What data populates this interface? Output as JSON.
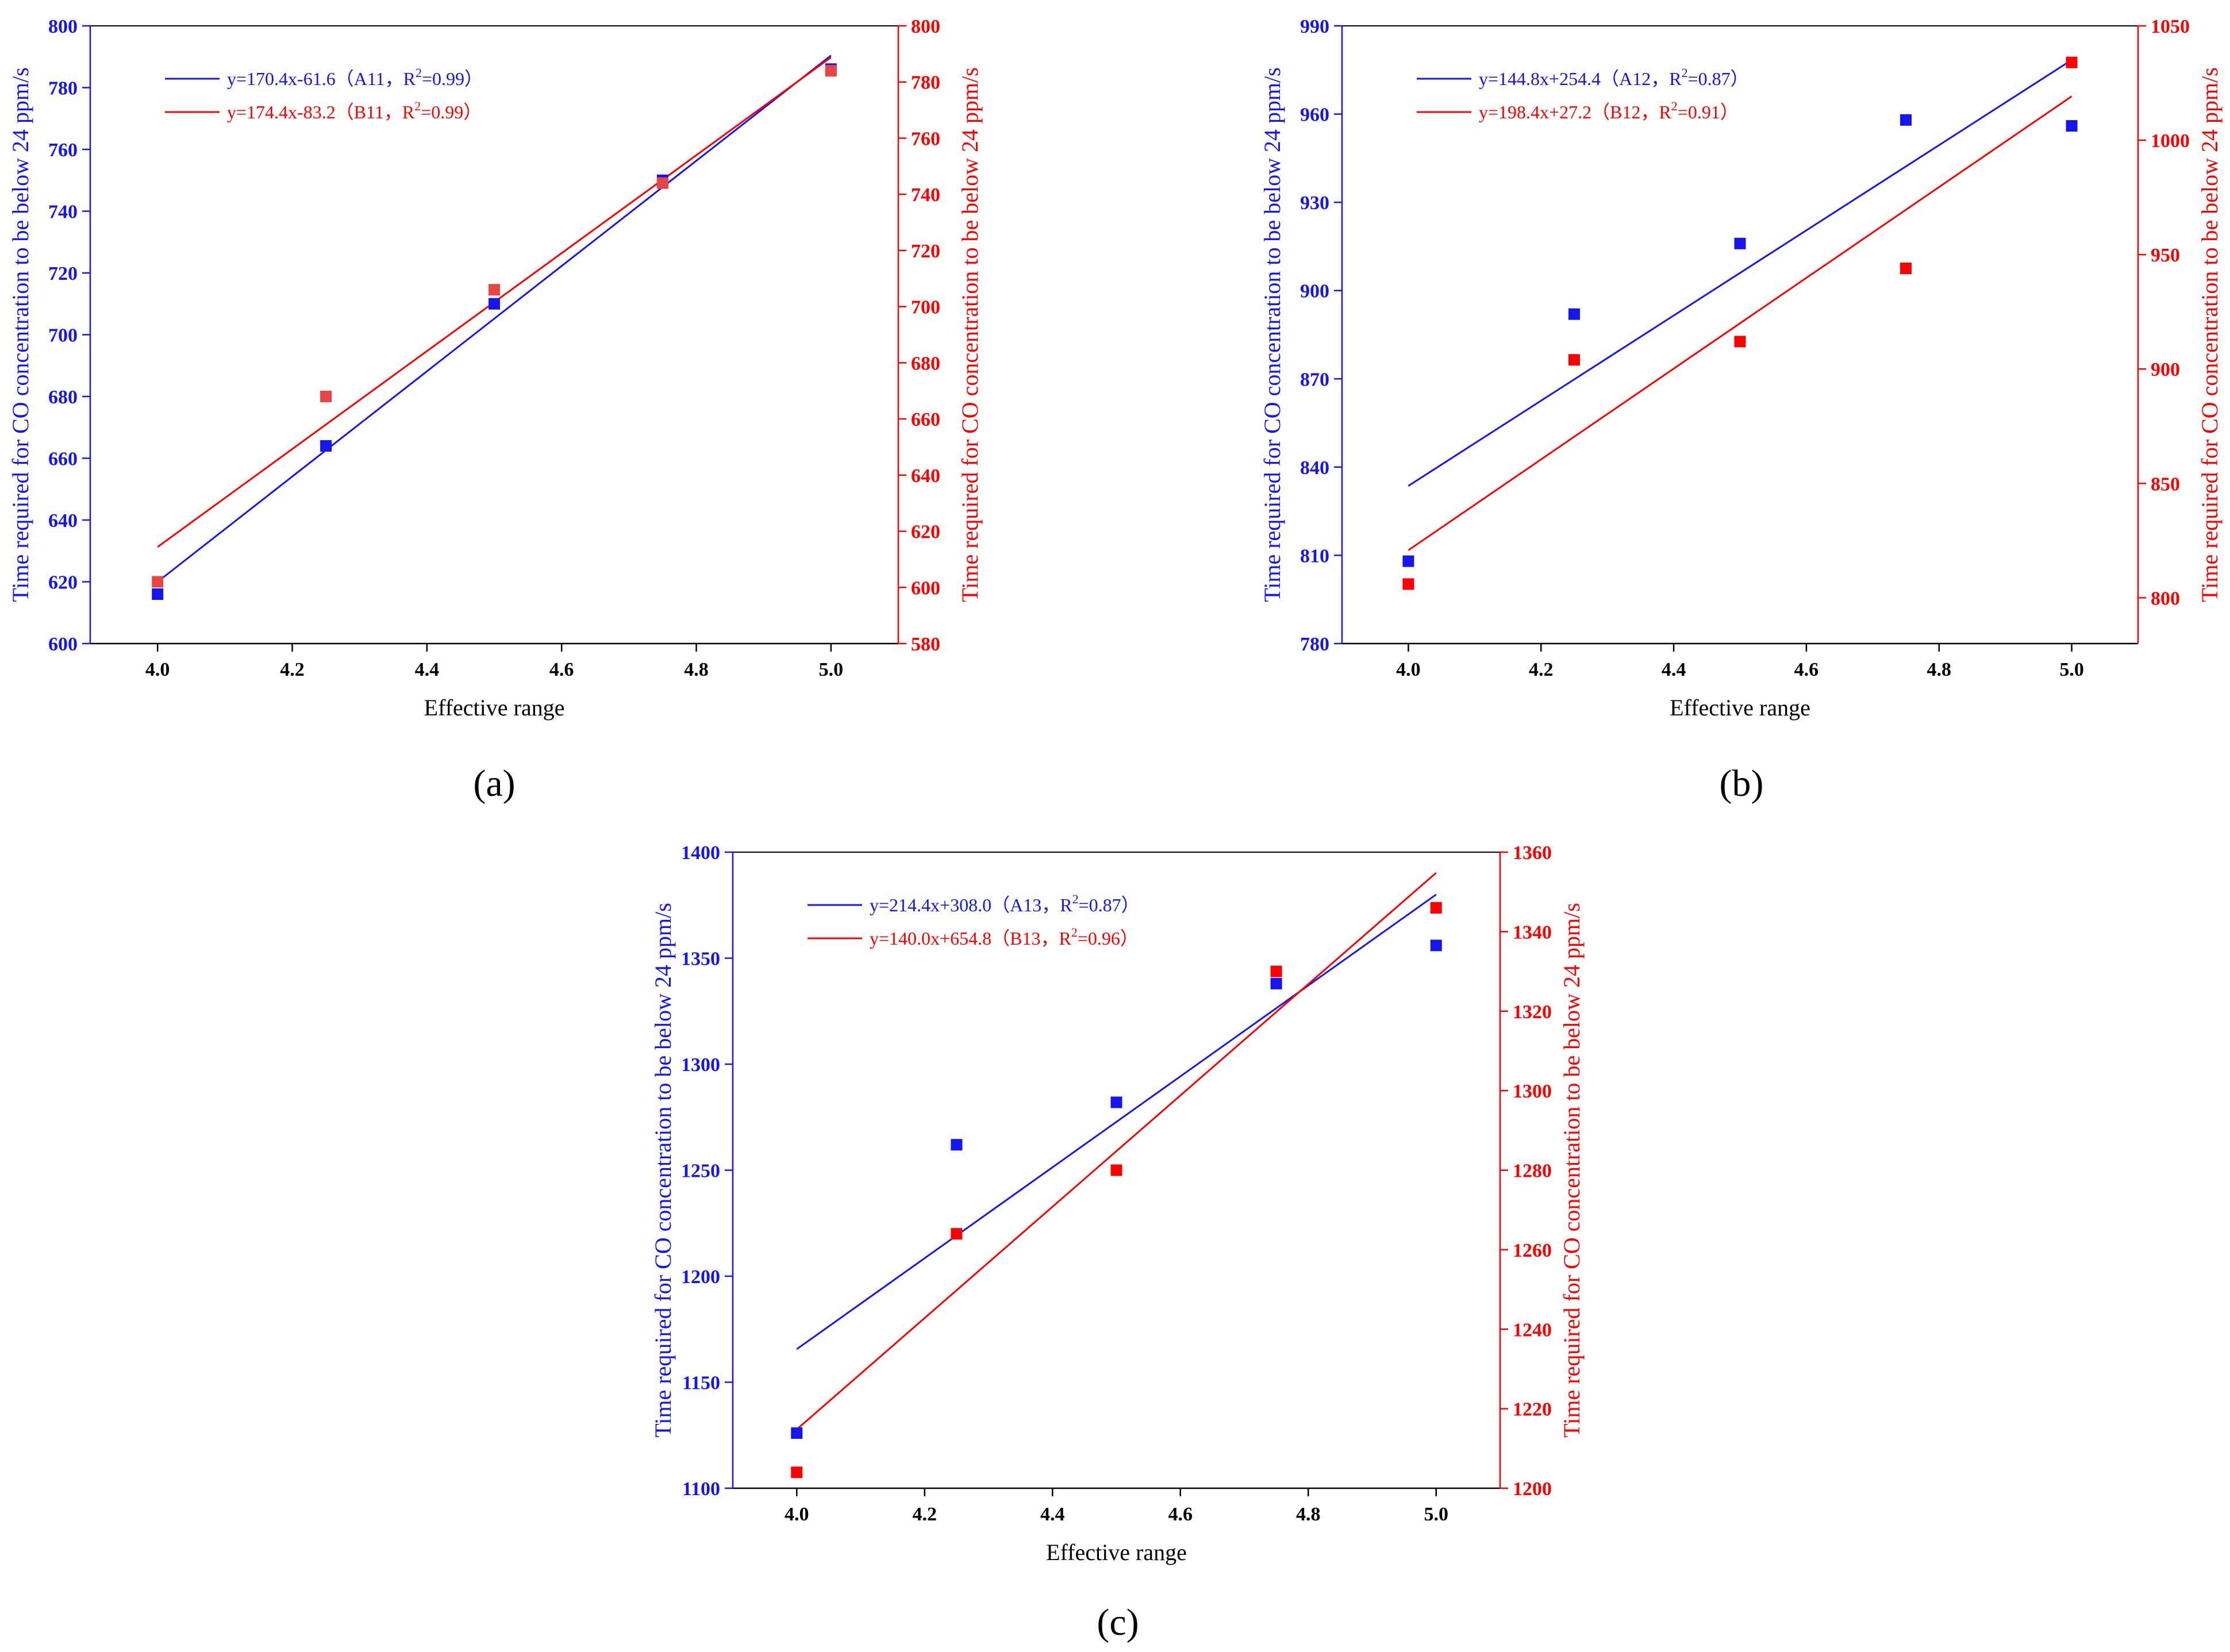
{
  "figure": {
    "colors": {
      "blue": "#1515f0",
      "red": "#ff0000",
      "axis": "#000000",
      "red_marker": "#e84545"
    }
  },
  "chart_data": [
    {
      "type": "scatter",
      "panel_label": "(a)",
      "panel_letter": "a",
      "xlabel": "Effective range",
      "ylabel_left": "Time required for CO concentration to be below 24 ppm/s",
      "ylabel_right": "Time required for CO concentration to be below 24 ppm/s",
      "xlim": [
        3.9,
        5.1
      ],
      "ylim_left": [
        600,
        800
      ],
      "ylim_right": [
        580,
        800
      ],
      "xticks": [
        "4.0",
        "4.2",
        "4.4",
        "4.6",
        "4.8",
        "5.0"
      ],
      "yticks_left": [
        "600",
        "620",
        "640",
        "660",
        "680",
        "700",
        "720",
        "740",
        "760",
        "780",
        "800"
      ],
      "yticks_right": [
        "580",
        "600",
        "620",
        "640",
        "660",
        "680",
        "700",
        "720",
        "740",
        "760",
        "780",
        "800"
      ],
      "legend_position": "top-left",
      "series": [
        {
          "name": "A11",
          "axis": "left",
          "color": "#1515f0",
          "x": [
            4.0,
            4.25,
            4.5,
            4.75,
            5.0
          ],
          "y": [
            616,
            664,
            710,
            750,
            786
          ],
          "fit": {
            "slope": 170.4,
            "intercept": -61.6,
            "x_range": [
              4.0,
              5.0
            ]
          },
          "legend": {
            "eq": "y=170.4x-61.6（A11，R",
            "sup": "2",
            "tail": "=0.99）"
          }
        },
        {
          "name": "B11",
          "axis": "right",
          "color": "#ff0000",
          "marker_color": "#e84545",
          "x": [
            4.0,
            4.25,
            4.5,
            4.75,
            5.0
          ],
          "y": [
            602,
            668,
            706,
            744,
            784
          ],
          "fit": {
            "slope": 174.4,
            "intercept": -83.2,
            "x_range": [
              4.0,
              5.0
            ]
          },
          "legend": {
            "eq": "y=174.4x-83.2（B11，R",
            "sup": "2",
            "tail": "=0.99）"
          }
        }
      ]
    },
    {
      "type": "scatter",
      "panel_label": "(b)",
      "panel_letter": "b",
      "xlabel": "Effective range",
      "ylabel_left": "Time required for CO concentration to be below 24 ppm/s",
      "ylabel_right": "Time required for CO concentration to be below 24 ppm/s",
      "xlim": [
        3.9,
        5.1
      ],
      "ylim_left": [
        780,
        990
      ],
      "ylim_right": [
        780,
        1050
      ],
      "xticks": [
        "4.0",
        "4.2",
        "4.4",
        "4.6",
        "4.8",
        "5.0"
      ],
      "yticks_left": [
        "780",
        "810",
        "840",
        "870",
        "900",
        "930",
        "960",
        "990"
      ],
      "yticks_right": [
        "800",
        "850",
        "900",
        "950",
        "1000",
        "1050"
      ],
      "legend_position": "top-left",
      "series": [
        {
          "name": "A12",
          "axis": "left",
          "color": "#1515f0",
          "x": [
            4.0,
            4.25,
            4.5,
            4.75,
            5.0
          ],
          "y": [
            808,
            892,
            916,
            958,
            956
          ],
          "fit": {
            "slope": 144.8,
            "intercept": 254.4,
            "x_range": [
              4.0,
              5.0
            ]
          },
          "legend": {
            "eq": "y=144.8x+254.4（A12，R",
            "sup": "2",
            "tail": "=0.87）"
          }
        },
        {
          "name": "B12",
          "axis": "right",
          "color": "#ff0000",
          "marker_color": "#ff0000",
          "x": [
            4.0,
            4.25,
            4.5,
            4.75,
            5.0
          ],
          "y": [
            806,
            904,
            912,
            944,
            1034
          ],
          "fit": {
            "slope": 198.4,
            "intercept": 27.2,
            "x_range": [
              4.0,
              5.0
            ]
          },
          "legend": {
            "eq": "y=198.4x+27.2（B12，R",
            "sup": "2",
            "tail": "=0.91）"
          }
        }
      ]
    },
    {
      "type": "scatter",
      "panel_label": "(c)",
      "panel_letter": "c",
      "xlabel": "Effective range",
      "ylabel_left": "Time required for CO concentration to be below 24 ppm/s",
      "ylabel_right": "Time required for CO concentration to be below 24 ppm/s",
      "xlim": [
        3.9,
        5.1
      ],
      "ylim_left": [
        1100,
        1400
      ],
      "ylim_right": [
        1200,
        1360
      ],
      "xticks": [
        "4.0",
        "4.2",
        "4.4",
        "4.6",
        "4.8",
        "5.0"
      ],
      "yticks_left": [
        "1100",
        "1150",
        "1200",
        "1250",
        "1300",
        "1350",
        "1400"
      ],
      "yticks_right": [
        "1200",
        "1220",
        "1240",
        "1260",
        "1280",
        "1300",
        "1320",
        "1340",
        "1360"
      ],
      "legend_position": "top-left",
      "series": [
        {
          "name": "A13",
          "axis": "left",
          "color": "#1515f0",
          "x": [
            4.0,
            4.25,
            4.5,
            4.75,
            5.0
          ],
          "y": [
            1126,
            1262,
            1282,
            1338,
            1356
          ],
          "fit": {
            "slope": 214.4,
            "intercept": 308.0,
            "x_range": [
              4.0,
              5.0
            ]
          },
          "legend": {
            "eq": "y=214.4x+308.0（A13，R",
            "sup": "2",
            "tail": "=0.87）"
          }
        },
        {
          "name": "B13",
          "axis": "right",
          "color": "#ff0000",
          "marker_color": "#ff0000",
          "x": [
            4.0,
            4.25,
            4.5,
            4.75,
            5.0
          ],
          "y": [
            1204,
            1264,
            1280,
            1330,
            1346
          ],
          "fit": {
            "slope": 140.0,
            "intercept": 654.8,
            "x_range": [
              4.0,
              5.0
            ]
          },
          "legend": {
            "eq": "y=140.0x+654.8（B13，R",
            "sup": "2",
            "tail": "=0.96）"
          }
        }
      ]
    }
  ]
}
